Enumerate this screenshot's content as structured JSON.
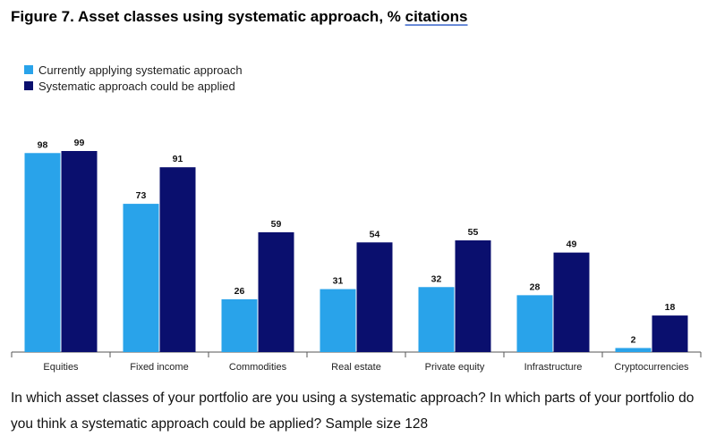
{
  "figure": {
    "title_main": "Figure 7. Asset classes using systematic approach, % ",
    "title_link": "citations",
    "caption": "In which asset classes of your portfolio are you using a systematic approach? In which parts of your portfolio do you think a systematic approach could be applied? Sample size 128"
  },
  "colors": {
    "current": "#29a3ea",
    "could": "#0a0f6e",
    "axis": "#555555"
  },
  "chart_data": {
    "type": "bar",
    "title": "Figure 7. Asset classes using systematic approach, % citations",
    "categories": [
      "Equities",
      "Fixed income",
      "Commodities",
      "Real estate",
      "Private equity",
      "Infrastructure",
      "Cryptocurrencies"
    ],
    "series": [
      {
        "name": "Currently applying systematic approach",
        "values": [
          98,
          73,
          26,
          31,
          32,
          28,
          2
        ]
      },
      {
        "name": "Systematic approach could be applied",
        "values": [
          99,
          91,
          59,
          54,
          55,
          49,
          18
        ]
      }
    ],
    "ylim": [
      0,
      100
    ],
    "legend_position": "top-left",
    "grid": false,
    "data_labels": true
  }
}
